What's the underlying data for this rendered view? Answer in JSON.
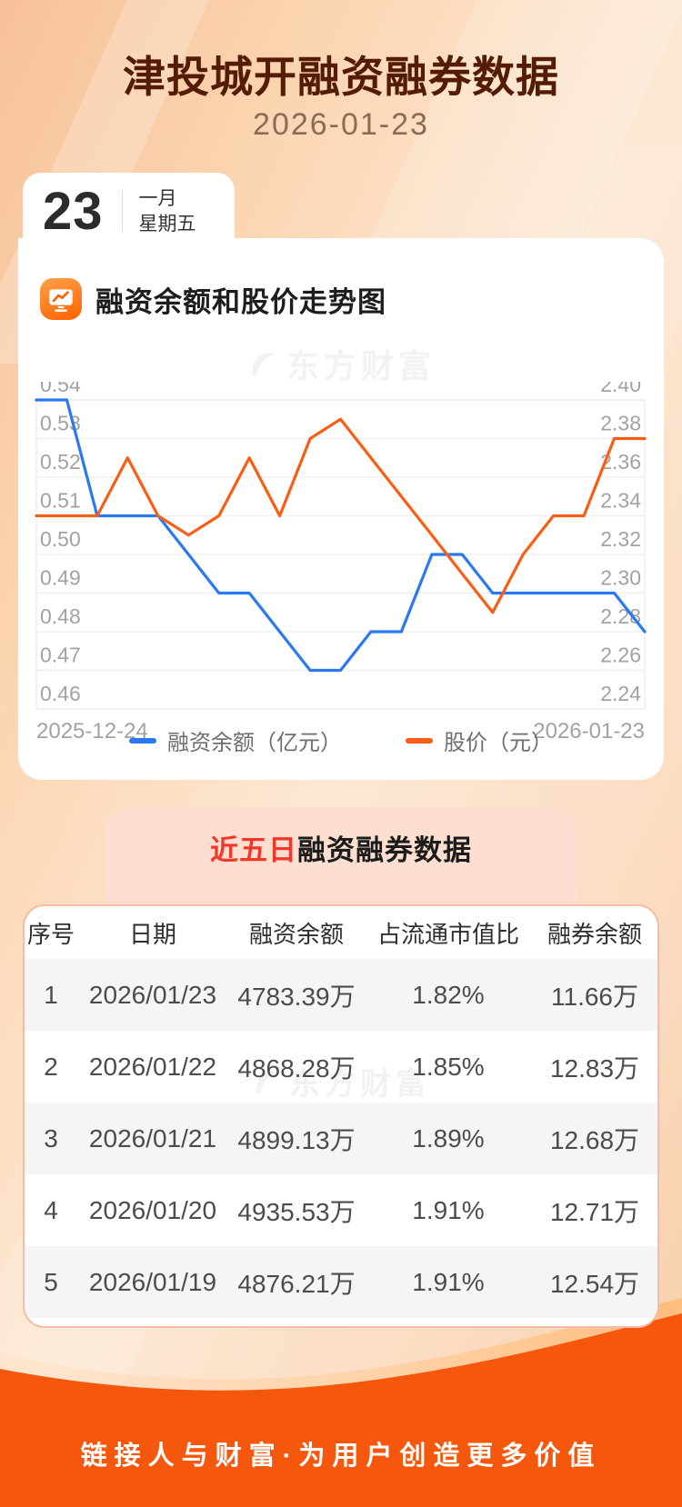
{
  "header": {
    "title": "津投城开融资融券数据",
    "date": "2026-01-23"
  },
  "date_badge": {
    "day": "23",
    "month": "一月",
    "weekday": "星期五"
  },
  "chart_section": {
    "title": "融资余额和股价走势图",
    "watermark": "东方财富"
  },
  "chart_data": {
    "type": "line",
    "x_labels": [
      "2025-12-24",
      "2026-01-23"
    ],
    "left_axis": {
      "min": 0.46,
      "max": 0.54,
      "ticks": [
        "0.54",
        "0.53",
        "0.52",
        "0.51",
        "0.50",
        "0.49",
        "0.48",
        "0.47",
        "0.46"
      ]
    },
    "right_axis": {
      "min": 2.24,
      "max": 2.4,
      "ticks": [
        "2.40",
        "2.38",
        "2.36",
        "2.34",
        "2.32",
        "2.30",
        "2.28",
        "2.26",
        "2.24"
      ]
    },
    "grid": true,
    "legend_position": "bottom",
    "series": [
      {
        "name": "融资余额（亿元）",
        "axis": "left",
        "color": "#2979f2",
        "values": [
          0.54,
          0.54,
          0.51,
          0.51,
          0.51,
          0.5,
          0.49,
          0.49,
          0.48,
          0.47,
          0.47,
          0.48,
          0.48,
          0.5,
          0.5,
          0.49,
          0.49,
          0.49,
          0.49,
          0.49,
          0.48
        ]
      },
      {
        "name": "股价（元）",
        "axis": "right",
        "color": "#fa5d14",
        "values": [
          2.34,
          2.34,
          2.34,
          2.37,
          2.34,
          2.33,
          2.34,
          2.37,
          2.34,
          2.38,
          2.39,
          2.37,
          2.35,
          2.33,
          2.31,
          2.29,
          2.32,
          2.34,
          2.34,
          2.38,
          2.38
        ]
      }
    ]
  },
  "table_section": {
    "title_highlight": "近五日",
    "title_rest": "融资融券数据",
    "watermark": "东方财富",
    "columns": [
      "序号",
      "日期",
      "融资余额",
      "占流通市值比",
      "融券余额"
    ],
    "rows": [
      [
        "1",
        "2026/01/23",
        "4783.39万",
        "1.82%",
        "11.66万"
      ],
      [
        "2",
        "2026/01/22",
        "4868.28万",
        "1.85%",
        "12.83万"
      ],
      [
        "3",
        "2026/01/21",
        "4899.13万",
        "1.89%",
        "12.68万"
      ],
      [
        "4",
        "2026/01/20",
        "4935.53万",
        "1.91%",
        "12.71万"
      ],
      [
        "5",
        "2026/01/19",
        "4876.21万",
        "1.91%",
        "12.54万"
      ]
    ]
  },
  "footer": {
    "slogan": "链接人与财富·为用户创造更多价值"
  },
  "colors": {
    "title": "#541c04",
    "date": "#8d6a55",
    "accent_red": "#f2382a",
    "blue_line": "#2979f2",
    "orange_line": "#fa5d14",
    "footer_orange": "#f5570c",
    "banner_bg": "#fcdfd0",
    "axis_text": "#a2a2a2",
    "gridline": "#f0f0f1"
  }
}
